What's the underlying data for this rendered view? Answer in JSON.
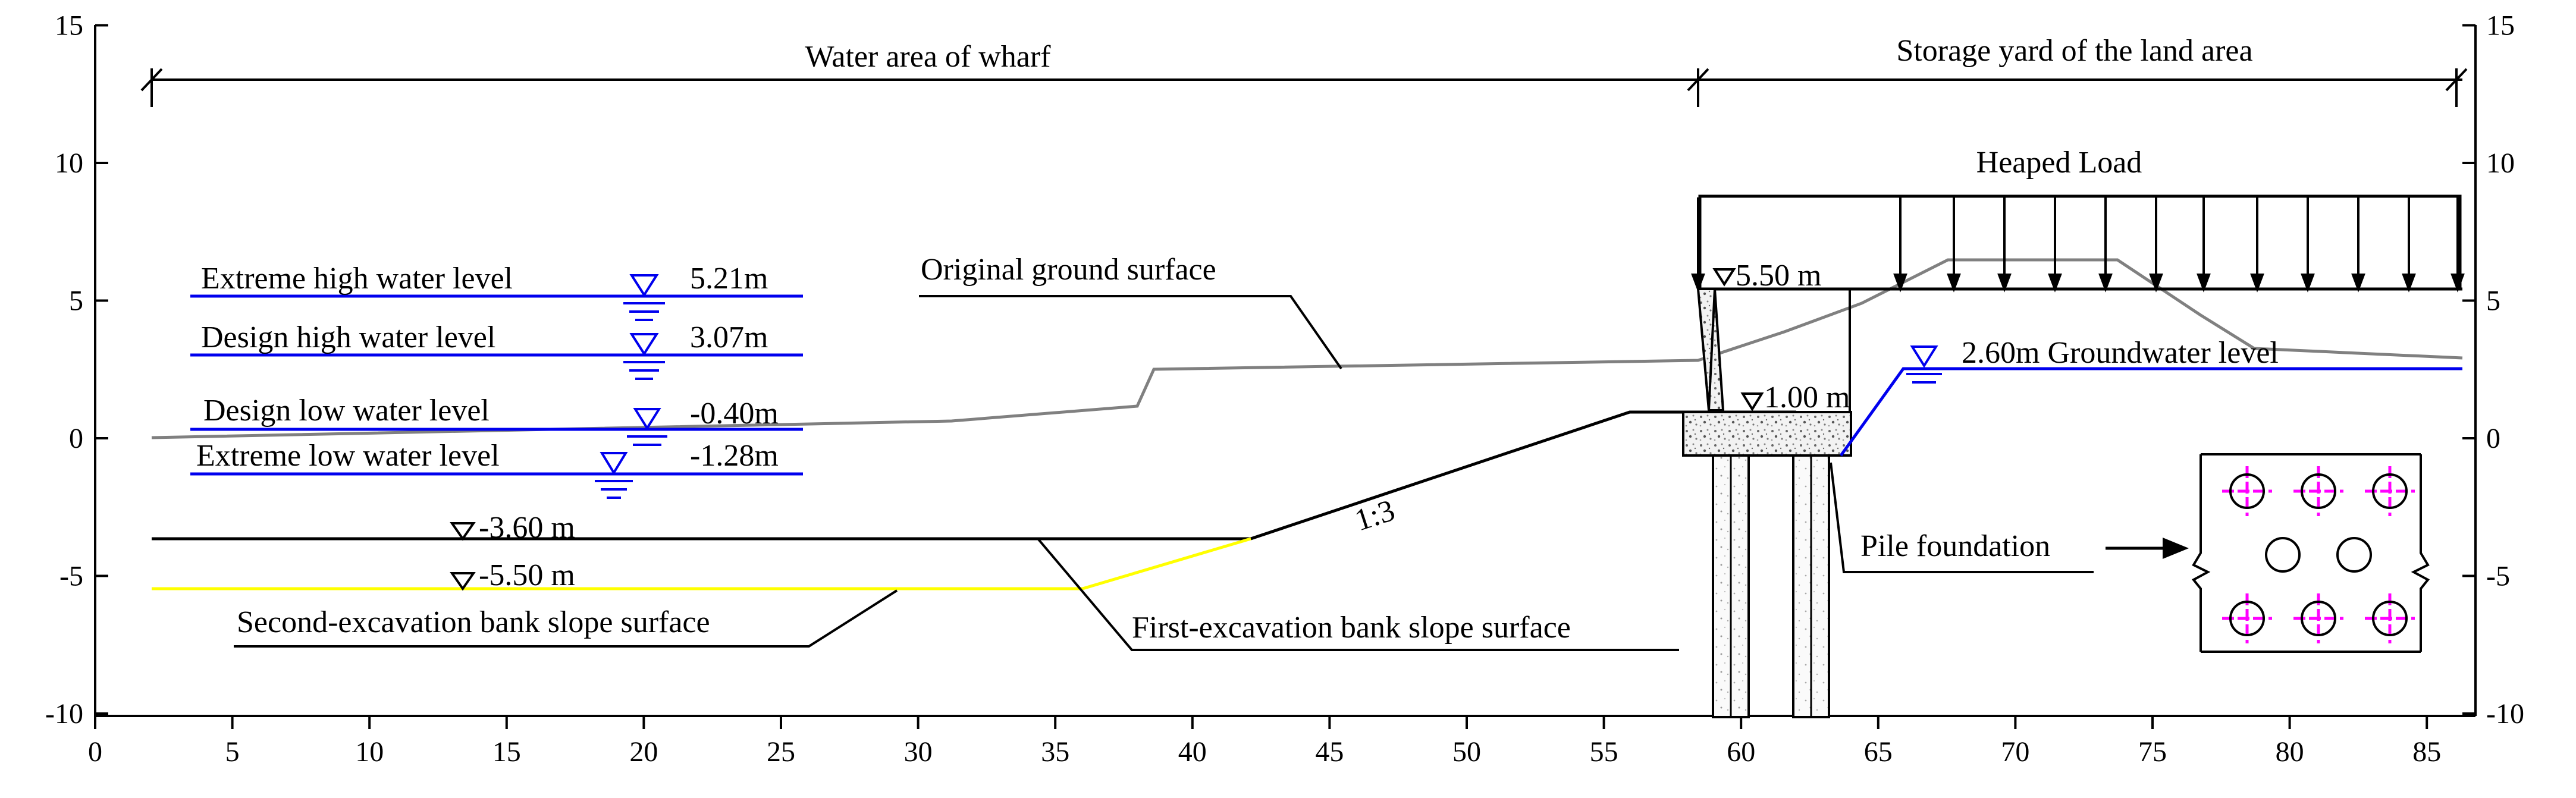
{
  "top_labels": {
    "water_area": "Water  area of wharf",
    "land_area": "Storage yard of the land area"
  },
  "axes": {
    "x_ticks": [
      "0",
      "5",
      "10",
      "15",
      "20",
      "25",
      "30",
      "35",
      "40",
      "45",
      "50",
      "55",
      "60",
      "65",
      "70",
      "75",
      "80",
      "85"
    ],
    "y_ticks": [
      "15",
      "10",
      "5",
      "0",
      "-5",
      "-10"
    ]
  },
  "water_levels": [
    {
      "name": "Extreme high water level",
      "value": "5.21m",
      "color": "#0000ee"
    },
    {
      "name": "Design high water level",
      "value": "3.07m",
      "color": "#0000ee"
    },
    {
      "name": "Design low water level",
      "value": "-0.40m",
      "color": "#0000ee"
    },
    {
      "name": "Extreme low water level",
      "value": "-1.28m",
      "color": "#0000ee"
    }
  ],
  "labels": {
    "original_ground": "Original ground surface",
    "heaped_load": "Heaped Load",
    "elev_550": "5.50 m",
    "elev_100": "1.00 m",
    "groundwater": "2.60m Groundwater level",
    "dredge_360": "-3.60 m",
    "dredge_550": "-5.50 m",
    "slope_ratio": "1:3",
    "second_excavation": "Second-excavation bank slope surface",
    "first_excavation": "First-excavation bank slope surface",
    "pile_foundation": "Pile foundation"
  },
  "colors": {
    "water_line": "#0000ee",
    "ground_line": "#808080",
    "second_excavation_line": "#ffff00",
    "pile_crosshair": "#ff00ff"
  },
  "icons": [
    "water-level-triangle-icon",
    "elevation-triangle-icon",
    "load-arrow-icon",
    "pile-circle-icon"
  ]
}
